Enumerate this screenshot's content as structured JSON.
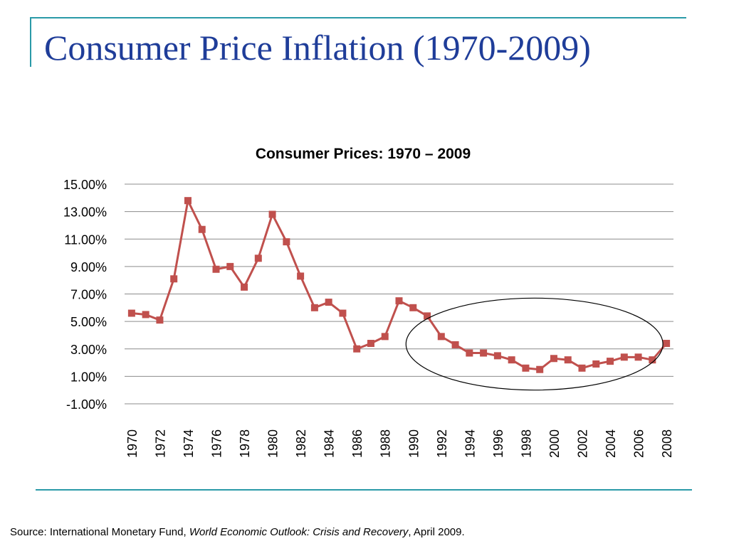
{
  "slide": {
    "title": "Consumer Price Inflation (1970-2009)"
  },
  "source": {
    "prefix": "Source: International Monetary Fund, ",
    "publication": "World Economic Outlook: Crisis and Recovery",
    "suffix": ", April 2009."
  },
  "colors": {
    "title": "#1f3d99",
    "frame_lines": "#2a9aa8",
    "series_line": "#c0504d",
    "gridlines": "#8c8c8c",
    "highlight_ellipse": "#000000"
  },
  "chart_data": {
    "type": "line",
    "title": "Consumer Prices: 1970 – 2009",
    "xlabel": "",
    "ylabel": "",
    "x": [
      1970,
      1971,
      1972,
      1973,
      1974,
      1975,
      1976,
      1977,
      1978,
      1979,
      1980,
      1981,
      1982,
      1983,
      1984,
      1985,
      1986,
      1987,
      1988,
      1989,
      1990,
      1991,
      1992,
      1993,
      1994,
      1995,
      1996,
      1997,
      1998,
      1999,
      2000,
      2001,
      2002,
      2003,
      2004,
      2005,
      2006,
      2007,
      2008
    ],
    "x_tick_labels": [
      "1970",
      "1972",
      "1974",
      "1976",
      "1978",
      "1980",
      "1982",
      "1984",
      "1986",
      "1988",
      "1990",
      "1992",
      "1994",
      "1996",
      "1998",
      "2000",
      "2002",
      "2004",
      "2006",
      "2008"
    ],
    "series": [
      {
        "values": [
          5.6,
          5.5,
          5.1,
          8.1,
          13.8,
          11.7,
          8.8,
          9.0,
          7.5,
          9.6,
          12.8,
          10.8,
          8.3,
          6.0,
          6.4,
          5.6,
          3.0,
          3.4,
          3.9,
          6.5,
          6.0,
          5.4,
          3.9,
          3.3,
          2.7,
          2.7,
          2.5,
          2.2,
          1.6,
          1.5,
          2.3,
          2.2,
          1.6,
          1.9,
          2.1,
          2.4,
          2.4,
          2.2,
          3.4
        ]
      }
    ],
    "y_tick_labels": [
      "15.00%",
      "13.00%",
      "11.00%",
      "9.00%",
      "7.00%",
      "5.00%",
      "3.00%",
      "1.00%",
      "-1.00%"
    ],
    "ylim": [
      -1,
      15
    ],
    "y_tick_step": 2,
    "grid": true,
    "legend": "none",
    "marker": "square",
    "highlight": {
      "shape": "ellipse",
      "x_range": [
        1990,
        2008
      ],
      "y_range": [
        0,
        6.7
      ]
    }
  }
}
